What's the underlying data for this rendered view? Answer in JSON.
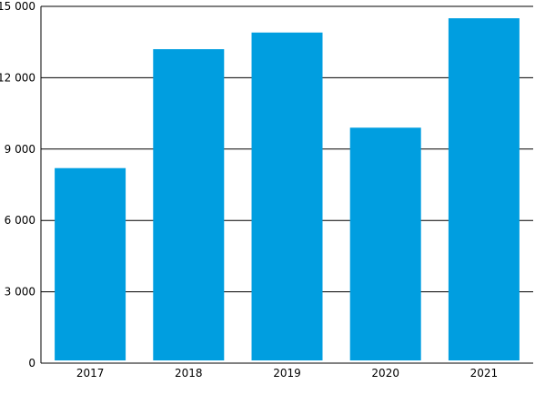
{
  "chart_data": {
    "type": "bar",
    "categories": [
      "2017",
      "2018",
      "2019",
      "2020",
      "2021"
    ],
    "values": [
      8200,
      13200,
      13900,
      9900,
      14500
    ],
    "title": "",
    "xlabel": "",
    "ylabel": "",
    "ylim": [
      0,
      15000
    ],
    "yticks": [
      0,
      3000,
      6000,
      9000,
      12000,
      15000
    ],
    "ytick_labels": [
      "0",
      "3 000",
      "6 000",
      "9 000",
      "12 000",
      "15 000"
    ],
    "grid": true,
    "legend": "none",
    "bar_color": "#009ee0"
  }
}
